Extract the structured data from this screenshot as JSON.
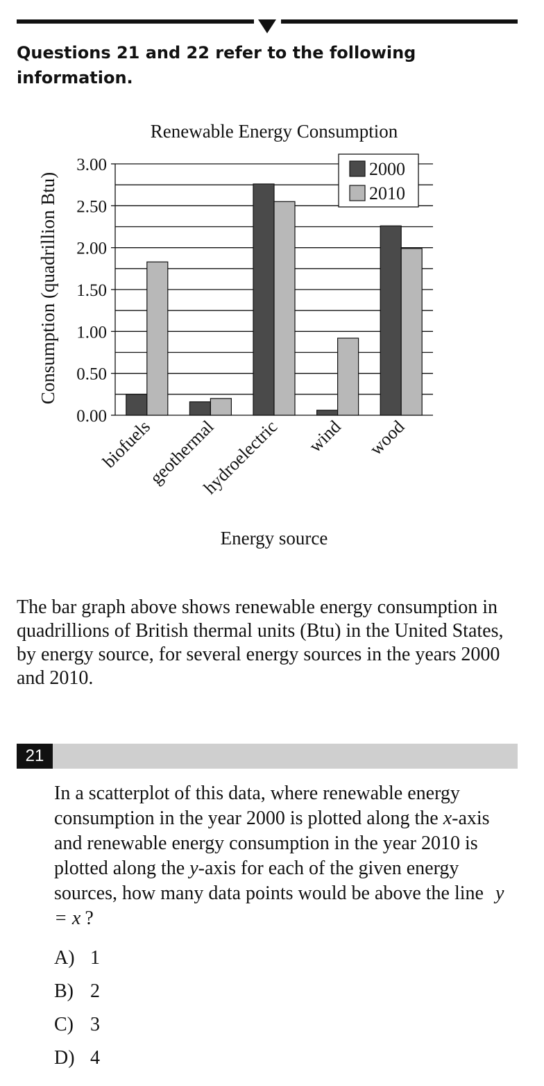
{
  "heading": "Questions 21 and 22 refer to the following information.",
  "chart_data": {
    "type": "bar",
    "title": "Renewable Energy Consumption",
    "xlabel": "Energy source",
    "ylabel": "Consumption (quadrillion Btu)",
    "categories": [
      "biofuels",
      "geothermal",
      "hydroelectric",
      "wind",
      "wood"
    ],
    "series": [
      {
        "name": "2000",
        "values": [
          0.25,
          0.16,
          2.76,
          0.06,
          2.26
        ],
        "color": "#4a4a4a"
      },
      {
        "name": "2010",
        "values": [
          1.83,
          0.2,
          2.55,
          0.92,
          1.99
        ],
        "color": "#b8b8b8"
      }
    ],
    "ylim": [
      0,
      3.0
    ],
    "yticks": [
      "0.00",
      "0.50",
      "1.00",
      "1.50",
      "2.00",
      "2.50",
      "3.00"
    ],
    "grid": true,
    "legend_position": "top-right"
  },
  "intro": "The bar graph above shows renewable energy consumption in quadrillions of British thermal units (Btu) in the United States, by energy source, for several energy sources in the years 2000 and 2010.",
  "question": {
    "number": "21",
    "text_part1": "In a scatterplot of this data, where renewable energy consumption in the year 2000 is plotted along the ",
    "var_x": "x",
    "text_part2": "-axis and renewable energy consumption in the year 2010 is plotted along the ",
    "var_y": "y",
    "text_part3": "-axis for each of the given energy sources, how many data points would be above the line ",
    "equation": "y = x",
    "text_part4": "?",
    "choices": [
      {
        "label": "A)",
        "value": "1"
      },
      {
        "label": "B)",
        "value": "2"
      },
      {
        "label": "C)",
        "value": "3"
      },
      {
        "label": "D)",
        "value": "4"
      }
    ]
  }
}
